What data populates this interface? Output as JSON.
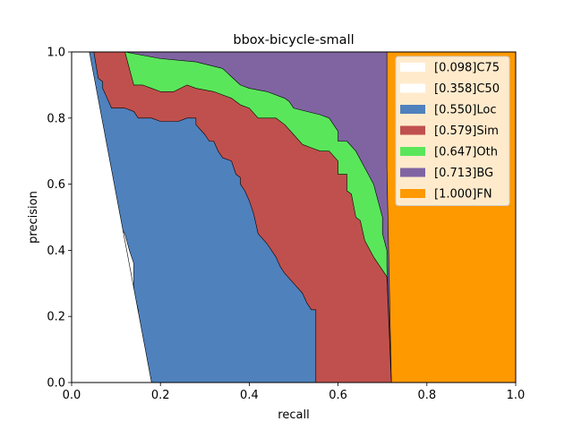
{
  "chart_data": {
    "type": "area",
    "title": "bbox-bicycle-small",
    "xlabel": "recall",
    "ylabel": "precision",
    "xlim": [
      0,
      1
    ],
    "ylim": [
      0,
      1
    ],
    "xticks": [
      "0.0",
      "0.2",
      "0.4",
      "0.6",
      "0.8",
      "1.0"
    ],
    "yticks": [
      "0.0",
      "0.2",
      "0.4",
      "0.6",
      "0.8",
      "1.0"
    ],
    "legend_position": "upper-right",
    "grid": false,
    "series": [
      {
        "name": "[1.000]FN",
        "color": "#ff9900",
        "points": [
          [
            0,
            1
          ],
          [
            1,
            1
          ]
        ]
      },
      {
        "name": "[0.713]BG",
        "color": "#8064a2",
        "points": [
          [
            0,
            1
          ],
          [
            0.71,
            1
          ],
          [
            0.71,
            0.65
          ],
          [
            0.72,
            0.0
          ]
        ]
      },
      {
        "name": "[0.647]Oth",
        "color": "#5ae65a",
        "points": [
          [
            0,
            1
          ],
          [
            0.12,
            1
          ],
          [
            0.2,
            0.98
          ],
          [
            0.28,
            0.97
          ],
          [
            0.34,
            0.95
          ],
          [
            0.38,
            0.9
          ],
          [
            0.4,
            0.89
          ],
          [
            0.44,
            0.88
          ],
          [
            0.48,
            0.86
          ],
          [
            0.49,
            0.85
          ],
          [
            0.5,
            0.83
          ],
          [
            0.56,
            0.81
          ],
          [
            0.58,
            0.8
          ],
          [
            0.6,
            0.76
          ],
          [
            0.6,
            0.73
          ],
          [
            0.62,
            0.73
          ],
          [
            0.64,
            0.7
          ],
          [
            0.66,
            0.65
          ],
          [
            0.68,
            0.6
          ],
          [
            0.69,
            0.55
          ],
          [
            0.7,
            0.5
          ],
          [
            0.7,
            0.45
          ],
          [
            0.71,
            0.4
          ],
          [
            0.71,
            0.35
          ],
          [
            0.72,
            0.0
          ]
        ]
      },
      {
        "name": "[0.579]Sim",
        "color": "#c0504d",
        "points": [
          [
            0,
            1
          ],
          [
            0.12,
            1
          ],
          [
            0.14,
            0.9
          ],
          [
            0.16,
            0.9
          ],
          [
            0.18,
            0.89
          ],
          [
            0.2,
            0.88
          ],
          [
            0.23,
            0.88
          ],
          [
            0.26,
            0.9
          ],
          [
            0.28,
            0.89
          ],
          [
            0.32,
            0.88
          ],
          [
            0.36,
            0.86
          ],
          [
            0.38,
            0.84
          ],
          [
            0.4,
            0.83
          ],
          [
            0.42,
            0.8
          ],
          [
            0.44,
            0.8
          ],
          [
            0.46,
            0.8
          ],
          [
            0.48,
            0.78
          ],
          [
            0.5,
            0.75
          ],
          [
            0.52,
            0.72
          ],
          [
            0.54,
            0.71
          ],
          [
            0.56,
            0.7
          ],
          [
            0.58,
            0.7
          ],
          [
            0.6,
            0.67
          ],
          [
            0.6,
            0.63
          ],
          [
            0.62,
            0.63
          ],
          [
            0.62,
            0.58
          ],
          [
            0.63,
            0.57
          ],
          [
            0.64,
            0.5
          ],
          [
            0.65,
            0.49
          ],
          [
            0.66,
            0.43
          ],
          [
            0.68,
            0.38
          ],
          [
            0.69,
            0.36
          ],
          [
            0.7,
            0.34
          ],
          [
            0.71,
            0.32
          ],
          [
            0.72,
            0.0
          ]
        ]
      },
      {
        "name": "[0.550]Loc",
        "color": "#4f81bd",
        "points": [
          [
            0,
            1
          ],
          [
            0.05,
            1
          ],
          [
            0.06,
            0.92
          ],
          [
            0.07,
            0.91
          ],
          [
            0.07,
            0.89
          ],
          [
            0.08,
            0.86
          ],
          [
            0.09,
            0.83
          ],
          [
            0.12,
            0.83
          ],
          [
            0.14,
            0.82
          ],
          [
            0.15,
            0.8
          ],
          [
            0.18,
            0.8
          ],
          [
            0.2,
            0.79
          ],
          [
            0.24,
            0.79
          ],
          [
            0.26,
            0.8
          ],
          [
            0.28,
            0.8
          ],
          [
            0.28,
            0.78
          ],
          [
            0.3,
            0.75
          ],
          [
            0.31,
            0.73
          ],
          [
            0.32,
            0.73
          ],
          [
            0.33,
            0.7
          ],
          [
            0.34,
            0.68
          ],
          [
            0.36,
            0.67
          ],
          [
            0.37,
            0.63
          ],
          [
            0.38,
            0.62
          ],
          [
            0.38,
            0.6
          ],
          [
            0.39,
            0.58
          ],
          [
            0.4,
            0.55
          ],
          [
            0.41,
            0.51
          ],
          [
            0.42,
            0.45
          ],
          [
            0.44,
            0.42
          ],
          [
            0.46,
            0.38
          ],
          [
            0.47,
            0.35
          ],
          [
            0.48,
            0.33
          ],
          [
            0.5,
            0.3
          ],
          [
            0.52,
            0.27
          ],
          [
            0.53,
            0.24
          ],
          [
            0.54,
            0.22
          ],
          [
            0.55,
            0.22
          ],
          [
            0.55,
            0.0
          ],
          [
            0.72,
            0.0
          ]
        ]
      },
      {
        "name": "[0.358]C50",
        "color": "#ffffff",
        "points": [
          [
            0,
            1
          ],
          [
            0.04,
            1
          ],
          [
            0.04,
            0.85
          ],
          [
            0.045,
            0.68
          ],
          [
            0.05,
            0.62
          ],
          [
            0.06,
            0.6
          ],
          [
            0.06,
            0.55
          ],
          [
            0.07,
            0.52
          ],
          [
            0.07,
            0.49
          ],
          [
            0.08,
            0.49
          ],
          [
            0.1,
            0.49
          ],
          [
            0.11,
            0.47
          ],
          [
            0.12,
            0.45
          ],
          [
            0.13,
            0.4
          ],
          [
            0.14,
            0.36
          ],
          [
            0.14,
            0.27
          ],
          [
            0.15,
            0.22
          ],
          [
            0.15,
            0.14
          ],
          [
            0.16,
            0.1
          ],
          [
            0.17,
            0.07
          ],
          [
            0.18,
            0.0
          ],
          [
            0.55,
            0.0
          ]
        ]
      },
      {
        "name": "[0.098]C75",
        "color": "#ffffff",
        "points": [
          [
            0,
            1
          ],
          [
            0.04,
            1
          ],
          [
            0.18,
            0.0
          ]
        ]
      }
    ]
  }
}
